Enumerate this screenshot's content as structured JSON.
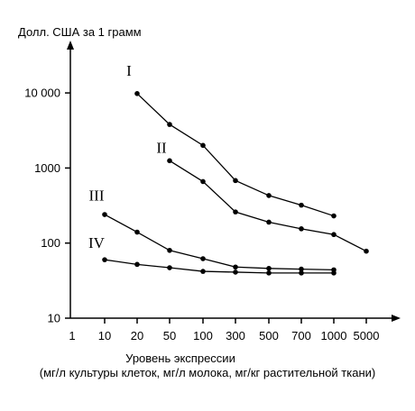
{
  "chart_data": {
    "type": "line",
    "ylabel": "Долл. США за 1 грамм",
    "xlabel": "Уровень экспрессии",
    "xlabel_sub": "(мг/л культуры клеток, мг/л молока, мг/кг растительной ткани)",
    "y_scale": "log",
    "ylim": [
      10,
      20000
    ],
    "x_scale": "categorical",
    "x_ticks": [
      "1",
      "10",
      "20",
      "50",
      "100",
      "300",
      "500",
      "700",
      "1000",
      "5000"
    ],
    "y_ticks": [
      {
        "value": 10,
        "label": "10"
      },
      {
        "value": 100,
        "label": "100"
      },
      {
        "value": 1000,
        "label": "1000"
      },
      {
        "value": 10000,
        "label": "10 000"
      }
    ],
    "grid": false,
    "series": [
      {
        "name": "I",
        "x": [
          "20",
          "50",
          "100",
          "300",
          "500",
          "700",
          "1000"
        ],
        "values": [
          9800,
          3800,
          2000,
          680,
          430,
          320,
          230
        ]
      },
      {
        "name": "II",
        "x": [
          "50",
          "100",
          "300",
          "500",
          "700",
          "1000",
          "5000"
        ],
        "values": [
          1250,
          660,
          260,
          190,
          155,
          130,
          78
        ]
      },
      {
        "name": "III",
        "x": [
          "10",
          "20",
          "50",
          "100",
          "300",
          "500",
          "700",
          "1000"
        ],
        "values": [
          240,
          140,
          80,
          62,
          48,
          46,
          45,
          44
        ]
      },
      {
        "name": "IV",
        "x": [
          "10",
          "20",
          "50",
          "100",
          "300",
          "500",
          "700",
          "1000"
        ],
        "values": [
          60,
          52,
          47,
          42,
          41,
          40,
          40,
          40
        ]
      }
    ],
    "label_x": {
      "I": "20",
      "II": "50",
      "III": "10",
      "IV": "10"
    },
    "label_y": {
      "I": 17000,
      "II": 1600,
      "III": 370,
      "IV": 86
    }
  }
}
